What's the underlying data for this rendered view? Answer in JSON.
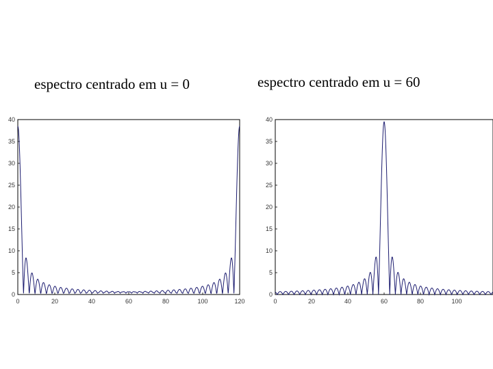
{
  "chart_data": [
    {
      "type": "line",
      "title": "espectro centrado em u = 0",
      "xlabel": "",
      "ylabel": "",
      "xlim": [
        0,
        120
      ],
      "ylim": [
        0,
        40
      ],
      "xticks": [
        "0",
        "20",
        "40",
        "60",
        "80",
        "100",
        "120"
      ],
      "yticks": [
        "0",
        "5",
        "10",
        "15",
        "20",
        "25",
        "30",
        "35",
        "40"
      ],
      "grid": false,
      "line_color": "#1a1a6e",
      "peak_positions": [
        0,
        120
      ],
      "peak_height": 38.5
    },
    {
      "type": "line",
      "title": "espectro centrado em u = 60",
      "xlabel": "",
      "ylabel": "",
      "xlim": [
        0,
        120
      ],
      "ylim": [
        0,
        40
      ],
      "xticks": [
        "0",
        "20",
        "40",
        "60",
        "80",
        "100"
      ],
      "yticks": [
        "0",
        "5",
        "10",
        "15",
        "20",
        "25",
        "30",
        "35",
        "40"
      ],
      "grid": false,
      "line_color": "#1a1a6e",
      "peak_positions": [
        60
      ],
      "peak_height": 39.5
    }
  ]
}
